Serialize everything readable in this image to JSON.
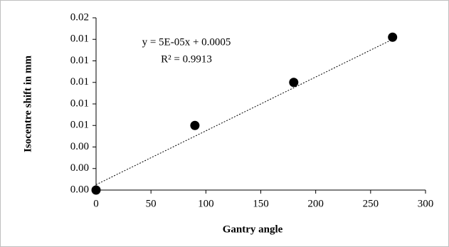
{
  "chart_data": {
    "type": "scatter",
    "x_label": "Gantry angle",
    "y_label": "Isocentre shift in mm",
    "series": [
      {
        "name": "Isocentre shift",
        "color": "#000000",
        "x": [
          0,
          90,
          180,
          270
        ],
        "values": [
          0,
          0.006,
          0.01,
          0.0142
        ]
      }
    ],
    "trendline": {
      "slope": 5e-05,
      "intercept": 0.0005,
      "equation": "y = 5E-05x + 0.0005",
      "r2": "R² = 0.9913"
    },
    "xlim": [
      0,
      300
    ],
    "xticks": [
      0,
      50,
      100,
      150,
      200,
      250,
      300
    ],
    "ylim": [
      0,
      0.016
    ],
    "yticks": [
      {
        "value": 0,
        "label": "0.00"
      },
      {
        "value": 0.002,
        "label": "0.00"
      },
      {
        "value": 0.004,
        "label": "0.00"
      },
      {
        "value": 0.006,
        "label": "0.01"
      },
      {
        "value": 0.008,
        "label": "0.01"
      },
      {
        "value": 0.01,
        "label": "0.01"
      },
      {
        "value": 0.012,
        "label": "0.01"
      },
      {
        "value": 0.014,
        "label": "0.01"
      },
      {
        "value": 0.016,
        "label": "0.02"
      }
    ],
    "grid": false
  }
}
